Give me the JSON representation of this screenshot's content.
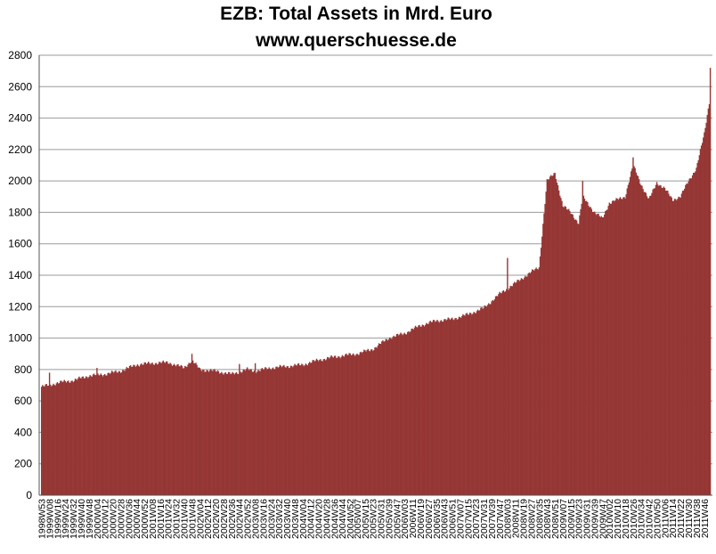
{
  "chart_data": {
    "type": "bar",
    "title": "EZB: Total Assets in Mrd. Euro",
    "subtitle": "www.querschuesse.de",
    "xlabel": "",
    "ylabel": "",
    "ylim": [
      0,
      2800
    ],
    "yticks": [
      0,
      200,
      400,
      600,
      800,
      1000,
      1200,
      1400,
      1600,
      1800,
      2000,
      2200,
      2400,
      2600,
      2800
    ],
    "grid": true,
    "bar_color": "#953735",
    "x_tick_labels": [
      "1998W53",
      "1999W08",
      "1999W16",
      "1999W24",
      "1999W32",
      "1999W40",
      "1999W48",
      "2000W04",
      "2000W12",
      "2000W20",
      "2000W28",
      "2000W36",
      "2000W44",
      "2000W52",
      "2001W08",
      "2001W16",
      "2001W24",
      "2001W32",
      "2001W40",
      "2001W48",
      "2002W04",
      "2002W12",
      "2002W20",
      "2002W28",
      "2002W36",
      "2002W44",
      "2002W52",
      "2003W08",
      "2003W16",
      "2003W24",
      "2003W32",
      "2003W40",
      "2003W48",
      "2004W04",
      "2004W12",
      "2004W20",
      "2004W28",
      "2004W36",
      "2004W44",
      "2004W52",
      "2005W07",
      "2005W15",
      "2005W23",
      "2005W31",
      "2005W39",
      "2005W47",
      "2006W03",
      "2006W11",
      "2006W19",
      "2006W27",
      "2006W35",
      "2006W43",
      "2006W51",
      "2007W07",
      "2007W15",
      "2007W23",
      "2007W31",
      "2007W39",
      "2007W47",
      "2008W03",
      "2008W11",
      "2008W19",
      "2008W27",
      "2008W35",
      "2008W43",
      "2008W51",
      "2009W07",
      "2009W15",
      "2009W23",
      "2009W31",
      "2009W39",
      "2009W47",
      "2010W02",
      "2010W10",
      "2010W18",
      "2010W26",
      "2010W34",
      "2010W42",
      "2010W50",
      "2011W06",
      "2011W14",
      "2011W22",
      "2011W30",
      "2011W38",
      "2011W46"
    ],
    "anchors": [
      {
        "week": "1998W53",
        "value": 690
      },
      {
        "week": "1999W08",
        "value": 700
      },
      {
        "week": "1999W16",
        "value": 715
      },
      {
        "week": "1999W32",
        "value": 730
      },
      {
        "week": "1999W48",
        "value": 760
      },
      {
        "week": "2000W12",
        "value": 770
      },
      {
        "week": "2000W28",
        "value": 790
      },
      {
        "week": "2000W44",
        "value": 830
      },
      {
        "week": "2001W08",
        "value": 840
      },
      {
        "week": "2001W24",
        "value": 845
      },
      {
        "week": "2001W40",
        "value": 810
      },
      {
        "week": "2001W48",
        "value": 860
      },
      {
        "week": "2002W04",
        "value": 800
      },
      {
        "week": "2002W20",
        "value": 790
      },
      {
        "week": "2002W36",
        "value": 770
      },
      {
        "week": "2002W52",
        "value": 800
      },
      {
        "week": "2003W08",
        "value": 790
      },
      {
        "week": "2003W24",
        "value": 810
      },
      {
        "week": "2003W40",
        "value": 820
      },
      {
        "week": "2004W04",
        "value": 830
      },
      {
        "week": "2004W20",
        "value": 860
      },
      {
        "week": "2004W36",
        "value": 880
      },
      {
        "week": "2005W07",
        "value": 900
      },
      {
        "week": "2005W23",
        "value": 930
      },
      {
        "week": "2005W39",
        "value": 1000
      },
      {
        "week": "2006W03",
        "value": 1030
      },
      {
        "week": "2006W19",
        "value": 1080
      },
      {
        "week": "2006W35",
        "value": 1110
      },
      {
        "week": "2006W51",
        "value": 1120
      },
      {
        "week": "2007W15",
        "value": 1150
      },
      {
        "week": "2007W31",
        "value": 1190
      },
      {
        "week": "2007W47",
        "value": 1280
      },
      {
        "week": "2008W11",
        "value": 1350
      },
      {
        "week": "2008W27",
        "value": 1420
      },
      {
        "week": "2008W35",
        "value": 1450
      },
      {
        "week": "2008W43",
        "value": 2000
      },
      {
        "week": "2008W51",
        "value": 2050
      },
      {
        "week": "2009W07",
        "value": 1840
      },
      {
        "week": "2009W15",
        "value": 1800
      },
      {
        "week": "2009W23",
        "value": 1730
      },
      {
        "week": "2009W27",
        "value": 1900
      },
      {
        "week": "2009W39",
        "value": 1800
      },
      {
        "week": "2009W47",
        "value": 1760
      },
      {
        "week": "2010W02",
        "value": 1860
      },
      {
        "week": "2010W18",
        "value": 1900
      },
      {
        "week": "2010W26",
        "value": 2100
      },
      {
        "week": "2010W34",
        "value": 1980
      },
      {
        "week": "2010W42",
        "value": 1880
      },
      {
        "week": "2010W50",
        "value": 1990
      },
      {
        "week": "2011W06",
        "value": 1950
      },
      {
        "week": "2011W14",
        "value": 1880
      },
      {
        "week": "2011W22",
        "value": 1900
      },
      {
        "week": "2011W30",
        "value": 2000
      },
      {
        "week": "2011W38",
        "value": 2080
      },
      {
        "week": "2011W46",
        "value": 2300
      },
      {
        "week": "2011W51",
        "value": 2500
      },
      {
        "week": "2011W52",
        "value": 2730
      }
    ],
    "spikes": [
      {
        "week": "1999W08",
        "value": 780
      },
      {
        "week": "2000W04",
        "value": 810
      },
      {
        "week": "2001W48",
        "value": 900
      },
      {
        "week": "2002W44",
        "value": 835
      },
      {
        "week": "2003W08",
        "value": 840
      },
      {
        "week": "2008W03",
        "value": 1510
      },
      {
        "week": "2009W27",
        "value": 2000
      },
      {
        "week": "2010W26",
        "value": 2150
      }
    ]
  }
}
